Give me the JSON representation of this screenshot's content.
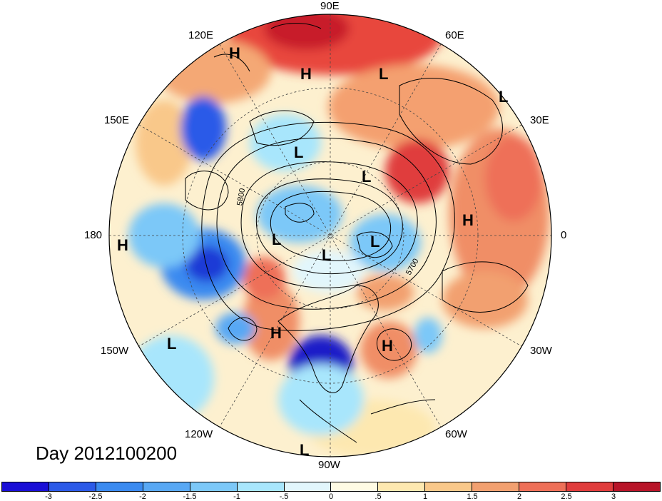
{
  "title": "Day 2012100200",
  "projection": "north-polar-stereographic",
  "longitude_labels": [
    "90E",
    "60E",
    "30E",
    "0",
    "30W",
    "60W",
    "90W",
    "120W",
    "150W",
    "180",
    "150E",
    "120E"
  ],
  "contour_labels": [
    "5800",
    "5700"
  ],
  "pressure_centers": [
    {
      "type": "H",
      "lon": "120E-sector"
    },
    {
      "type": "H",
      "lon": "100E"
    },
    {
      "type": "L",
      "lon": "75E"
    },
    {
      "type": "L",
      "lon": "40E"
    },
    {
      "type": "H",
      "lon": "0"
    },
    {
      "type": "H",
      "lon": "180"
    },
    {
      "type": "L",
      "lon": "150W"
    },
    {
      "type": "H",
      "lon": "110W"
    },
    {
      "type": "H",
      "lon": "50W"
    },
    {
      "type": "L",
      "lon": "95W"
    },
    {
      "type": "L",
      "lon": "120E"
    },
    {
      "type": "L",
      "lon": "90E"
    },
    {
      "type": "L",
      "lon": "150E"
    },
    {
      "type": "L",
      "lon": "60E"
    },
    {
      "type": "L",
      "lon": "pole"
    }
  ],
  "colorbar": {
    "ticks": [
      "-3",
      "-2.5",
      "-2",
      "-1.5",
      "-1",
      "-.5",
      "0",
      ".5",
      "1",
      "1.5",
      "2",
      "2.5",
      "3"
    ],
    "colors": [
      "#1a0fd6",
      "#2b5ae8",
      "#3a8af0",
      "#58a8f4",
      "#7cc8f8",
      "#a8e6fc",
      "#e2f6fc",
      "#fffbe4",
      "#fde8b0",
      "#f9c88a",
      "#f2a070",
      "#ee7058",
      "#e03c3c",
      "#b81428"
    ]
  },
  "colors": {
    "ocean_neutral": "#fdf3d8",
    "land_line": "#000000"
  }
}
